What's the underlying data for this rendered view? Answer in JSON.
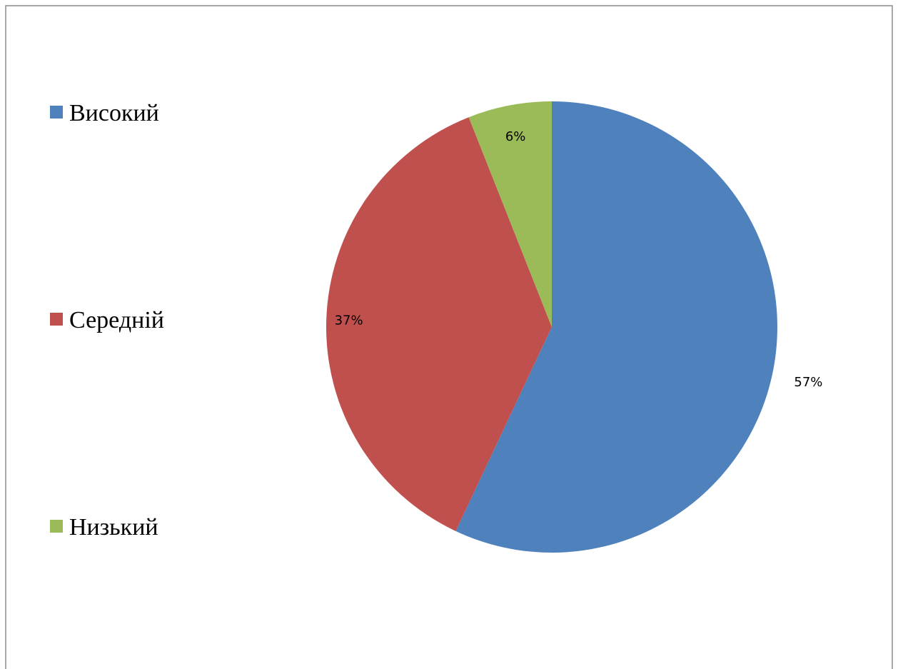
{
  "chart_data": {
    "type": "pie",
    "title": "",
    "categories": [
      "Високий",
      "Середній",
      "Низький"
    ],
    "values": [
      57,
      37,
      6
    ],
    "data_labels": [
      "57%",
      "37%",
      "6%"
    ],
    "colors": [
      "#4F81BD",
      "#C0504D",
      "#9BBB59"
    ],
    "legend_position": "left",
    "start_angle": "12 o'clock",
    "direction": "clockwise"
  }
}
